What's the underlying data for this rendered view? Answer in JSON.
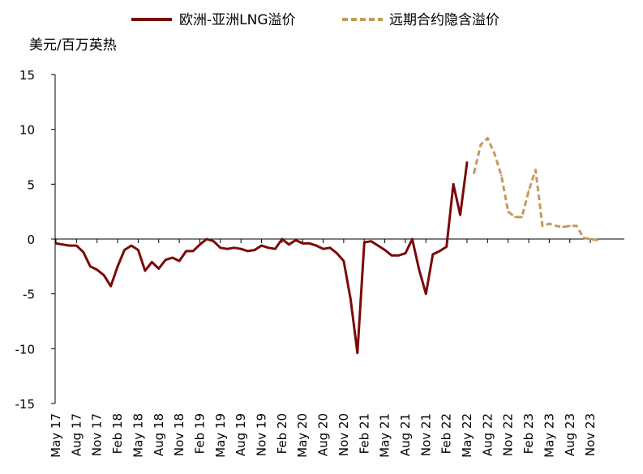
{
  "chart_data": {
    "type": "line",
    "ylabel": "美元/百万英热",
    "ylim": [
      -15,
      15
    ],
    "yticks": [
      15,
      10,
      5,
      0,
      -5,
      -10,
      -15
    ],
    "grid": false,
    "legend_position": "top",
    "x_tick_labels": [
      "May 17",
      "Aug 17",
      "Nov 17",
      "Feb 18",
      "May 18",
      "Aug 18",
      "Nov 18",
      "Feb 19",
      "May 19",
      "Aug 19",
      "Nov 19",
      "Feb 20",
      "May 20",
      "Aug 20",
      "Nov 20",
      "Feb 21",
      "May 21",
      "Aug 21",
      "Nov 21",
      "Feb 22",
      "May 22",
      "Aug 22",
      "Nov 22",
      "Feb 23",
      "May 23",
      "Aug 23",
      "Nov 23"
    ],
    "x_start": "2017-05",
    "series": [
      {
        "name": "欧洲-亚洲LNG溢价",
        "color": "#7a0a0a",
        "style": "solid",
        "x": [
          "2017-05",
          "2017-06",
          "2017-07",
          "2017-08",
          "2017-09",
          "2017-10",
          "2017-11",
          "2017-12",
          "2018-01",
          "2018-02",
          "2018-03",
          "2018-04",
          "2018-05",
          "2018-06",
          "2018-07",
          "2018-08",
          "2018-09",
          "2018-10",
          "2018-11",
          "2018-12",
          "2019-01",
          "2019-02",
          "2019-03",
          "2019-04",
          "2019-05",
          "2019-06",
          "2019-07",
          "2019-08",
          "2019-09",
          "2019-10",
          "2019-11",
          "2019-12",
          "2020-01",
          "2020-02",
          "2020-03",
          "2020-04",
          "2020-05",
          "2020-06",
          "2020-07",
          "2020-08",
          "2020-09",
          "2020-10",
          "2020-11",
          "2020-12",
          "2021-01",
          "2021-02",
          "2021-03",
          "2021-04",
          "2021-05",
          "2021-06",
          "2021-07",
          "2021-08",
          "2021-09",
          "2021-10",
          "2021-11",
          "2021-12",
          "2022-01",
          "2022-02",
          "2022-03",
          "2022-04",
          "2022-05"
        ],
        "values": [
          -0.4,
          -0.5,
          -0.6,
          -0.6,
          -1.2,
          -2.5,
          -2.8,
          -3.3,
          -4.3,
          -2.5,
          -1.0,
          -0.6,
          -1.0,
          -2.9,
          -2.1,
          -2.7,
          -1.9,
          -1.7,
          -2.0,
          -1.1,
          -1.1,
          -0.5,
          0.0,
          -0.2,
          -0.8,
          -0.9,
          -0.8,
          -0.9,
          -1.1,
          -1.0,
          -0.6,
          -0.8,
          -0.9,
          0.0,
          -0.5,
          -0.1,
          -0.4,
          -0.4,
          -0.6,
          -0.9,
          -0.8,
          -1.3,
          -2.0,
          -5.5,
          -10.4,
          -0.3,
          -0.2,
          -0.6,
          -1.0,
          -1.5,
          -1.5,
          -1.3,
          0.0,
          -2.8,
          -5.0,
          -1.4,
          -1.1,
          -0.7,
          5.0,
          2.2,
          7.0
        ]
      },
      {
        "name": "远期合约隐含溢价",
        "color": "#c49a5a",
        "style": "dashed",
        "x": [
          "2022-06",
          "2022-07",
          "2022-08",
          "2022-09",
          "2022-10",
          "2022-11",
          "2022-12",
          "2023-01",
          "2023-02",
          "2023-03",
          "2023-04",
          "2023-05",
          "2023-06",
          "2023-07",
          "2023-08",
          "2023-09",
          "2023-10",
          "2023-11",
          "2023-12"
        ],
        "values": [
          6.0,
          8.6,
          9.2,
          7.8,
          5.8,
          2.5,
          2.0,
          2.0,
          4.4,
          6.3,
          1.2,
          1.4,
          1.2,
          1.1,
          1.2,
          1.2,
          0.1,
          0.0,
          -0.1
        ]
      }
    ]
  }
}
